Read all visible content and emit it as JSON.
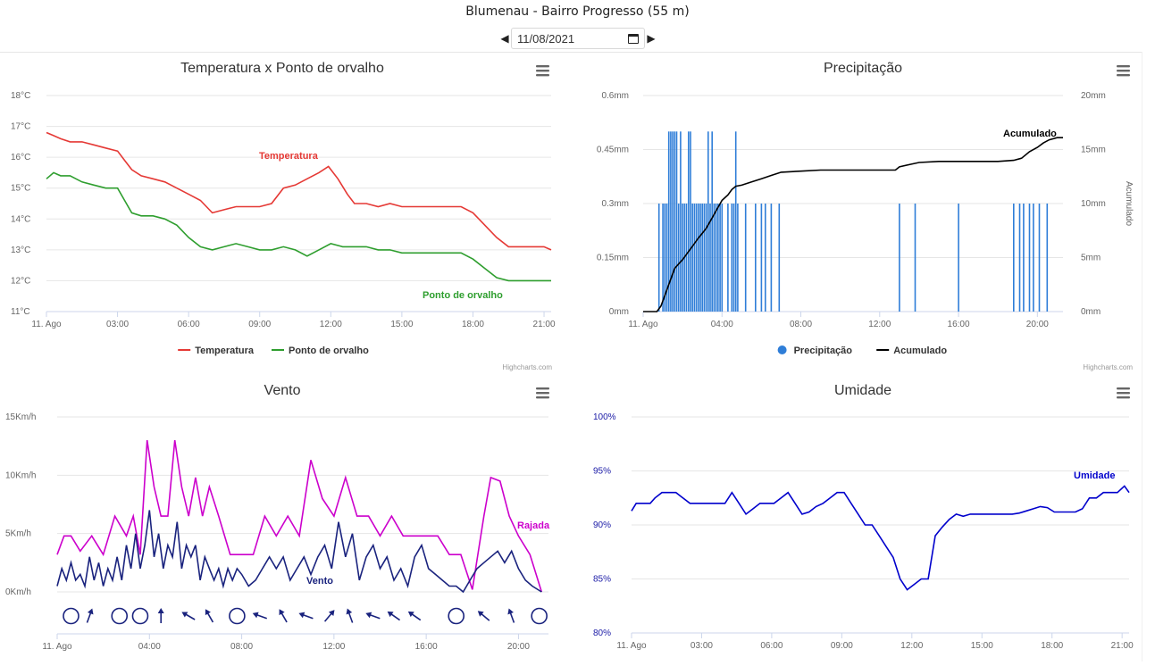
{
  "page": {
    "title": "Blumenau - Bairro Progresso (55 m)",
    "date_value": "11/08/2021",
    "credit": "Highcharts.com"
  },
  "chart_data": [
    {
      "id": "temp",
      "type": "line",
      "title": "Temperatura x Ponto de orvalho",
      "y_ticks": [
        "11°C",
        "12°C",
        "13°C",
        "14°C",
        "15°C",
        "16°C",
        "17°C",
        "18°C"
      ],
      "ylim": [
        11,
        18
      ],
      "x_ticks": [
        "11. Ago",
        "03:00",
        "06:00",
        "09:00",
        "12:00",
        "15:00",
        "18:00",
        "21:00"
      ],
      "x_tick_hours": [
        0,
        3,
        6,
        9,
        12,
        15,
        18,
        21
      ],
      "xlim_hours": [
        0,
        21.3
      ],
      "legend": "bottom",
      "series": [
        {
          "name": "Temperatura",
          "color": "#e53935",
          "x": [
            0,
            0.3,
            0.6,
            1,
            1.5,
            2,
            2.5,
            3,
            3.3,
            3.6,
            4,
            4.5,
            5,
            5.5,
            6,
            6.5,
            7,
            7.5,
            8,
            8.5,
            9,
            9.5,
            10,
            10.5,
            11,
            11.5,
            11.9,
            12.3,
            12.7,
            13,
            13.5,
            14,
            14.5,
            15,
            15.5,
            16,
            16.5,
            17,
            17.5,
            18,
            18.5,
            19,
            19.5,
            20,
            20.5,
            21,
            21.3
          ],
          "values": [
            16.8,
            16.7,
            16.6,
            16.5,
            16.5,
            16.4,
            16.3,
            16.2,
            15.9,
            15.6,
            15.4,
            15.3,
            15.2,
            15.0,
            14.8,
            14.6,
            14.2,
            14.3,
            14.4,
            14.4,
            14.4,
            14.5,
            15.0,
            15.1,
            15.3,
            15.5,
            15.7,
            15.3,
            14.8,
            14.5,
            14.5,
            14.4,
            14.5,
            14.4,
            14.4,
            14.4,
            14.4,
            14.4,
            14.4,
            14.2,
            13.8,
            13.4,
            13.1,
            13.1,
            13.1,
            13.1,
            13.0
          ]
        },
        {
          "name": "Ponto de orvalho",
          "color": "#2e9e2e",
          "x": [
            0,
            0.3,
            0.6,
            1,
            1.5,
            2,
            2.5,
            3,
            3.3,
            3.6,
            4,
            4.5,
            5,
            5.5,
            6,
            6.5,
            7,
            7.5,
            8,
            8.5,
            9,
            9.5,
            10,
            10.5,
            11,
            11.5,
            12,
            12.5,
            13,
            13.5,
            14,
            14.5,
            15,
            15.5,
            16,
            16.5,
            17,
            17.5,
            18,
            18.5,
            19,
            19.5,
            20,
            20.5,
            21,
            21.3
          ],
          "values": [
            15.3,
            15.5,
            15.4,
            15.4,
            15.2,
            15.1,
            15.0,
            15.0,
            14.6,
            14.2,
            14.1,
            14.1,
            14.0,
            13.8,
            13.4,
            13.1,
            13.0,
            13.1,
            13.2,
            13.1,
            13.0,
            13.0,
            13.1,
            13.0,
            12.8,
            13.0,
            13.2,
            13.1,
            13.1,
            13.1,
            13.0,
            13.0,
            12.9,
            12.9,
            12.9,
            12.9,
            12.9,
            12.9,
            12.7,
            12.4,
            12.1,
            12.0,
            12.0,
            12.0,
            12.0,
            12.0
          ]
        }
      ],
      "annotations": [
        {
          "text": "Temperatura",
          "color": "#e53935"
        },
        {
          "text": "Ponto de orvalho",
          "color": "#2e9e2e"
        }
      ]
    },
    {
      "id": "precip",
      "type": "bar+line",
      "title": "Precipitação",
      "y_ticks_left": [
        "0mm",
        "0.15mm",
        "0.3mm",
        "0.45mm",
        "0.6mm"
      ],
      "ylim_left": [
        0,
        0.6
      ],
      "y_ticks_right": [
        "0mm",
        "5mm",
        "10mm",
        "15mm",
        "20mm"
      ],
      "ylim_right": [
        0,
        20
      ],
      "ylabel_right": "Acumulado",
      "x_ticks": [
        "11. Ago",
        "04:00",
        "08:00",
        "12:00",
        "16:00",
        "20:00"
      ],
      "x_tick_hours": [
        0,
        4,
        8,
        12,
        16,
        20
      ],
      "xlim_hours": [
        0,
        21.3
      ],
      "legend": "bottom",
      "series": [
        {
          "name": "Precipitação",
          "color": "#2f7ed8",
          "x": [
            0.8,
            1.0,
            1.1,
            1.2,
            1.3,
            1.4,
            1.5,
            1.6,
            1.7,
            1.8,
            1.9,
            2.0,
            2.1,
            2.2,
            2.3,
            2.4,
            2.5,
            2.6,
            2.7,
            2.8,
            2.9,
            3.0,
            3.1,
            3.2,
            3.3,
            3.4,
            3.5,
            3.6,
            3.7,
            3.8,
            3.9,
            4.0,
            4.3,
            4.5,
            4.6,
            4.7,
            4.8,
            5.2,
            5.7,
            6.0,
            6.2,
            6.5,
            6.9,
            13.0,
            13.8,
            16.0,
            18.8,
            19.1,
            19.3,
            19.6,
            19.8,
            20.1,
            20.5
          ],
          "values": [
            0.3,
            0.3,
            0.3,
            0.3,
            0.5,
            0.5,
            0.5,
            0.5,
            0.5,
            0.3,
            0.5,
            0.3,
            0.3,
            0.3,
            0.5,
            0.5,
            0.3,
            0.3,
            0.3,
            0.3,
            0.3,
            0.3,
            0.3,
            0.3,
            0.5,
            0.3,
            0.5,
            0.3,
            0.3,
            0.3,
            0.3,
            0.3,
            0.3,
            0.3,
            0.3,
            0.5,
            0.3,
            0.3,
            0.3,
            0.3,
            0.3,
            0.3,
            0.3,
            0.3,
            0.3,
            0.3,
            0.3,
            0.3,
            0.3,
            0.3,
            0.3,
            0.3,
            0.3
          ]
        },
        {
          "name": "Acumulado",
          "color": "#000000",
          "x": [
            0,
            0.7,
            0.9,
            1.3,
            1.6,
            2.0,
            2.4,
            2.8,
            3.2,
            3.6,
            4.0,
            4.3,
            4.5,
            4.7,
            5.0,
            5.5,
            6.0,
            6.5,
            7.0,
            8.0,
            9.0,
            10.0,
            11.0,
            12.0,
            12.8,
            13.0,
            13.5,
            14.0,
            15.0,
            16.0,
            17.0,
            18.0,
            18.8,
            19.2,
            19.6,
            20.0,
            20.3,
            20.6,
            21.0,
            21.3
          ],
          "values": [
            0,
            0,
            0.5,
            2.5,
            4,
            4.8,
            5.8,
            6.8,
            7.7,
            9,
            10.3,
            10.8,
            11.3,
            11.6,
            11.7,
            12,
            12.3,
            12.6,
            12.9,
            13,
            13.1,
            13.1,
            13.1,
            13.1,
            13.1,
            13.4,
            13.6,
            13.8,
            13.9,
            13.9,
            13.9,
            13.9,
            14.0,
            14.2,
            14.8,
            15.2,
            15.6,
            15.9,
            16.1,
            16.1
          ]
        }
      ],
      "annotations": [
        {
          "text": "Acumulado",
          "color": "#000000"
        }
      ]
    },
    {
      "id": "wind",
      "type": "line",
      "title": "Vento",
      "y_ticks": [
        "0Km/h",
        "5Km/h",
        "10Km/h",
        "15Km/h"
      ],
      "ylim": [
        0,
        15
      ],
      "x_ticks": [
        "11. Ago",
        "04:00",
        "08:00",
        "12:00",
        "16:00",
        "20:00"
      ],
      "x_tick_hours": [
        0,
        4,
        8,
        12,
        16,
        20
      ],
      "xlim_hours": [
        0,
        21.3
      ],
      "legend": "none",
      "series": [
        {
          "name": "Rajada",
          "color": "#cc00cc",
          "x": [
            0,
            0.3,
            0.6,
            1,
            1.5,
            2,
            2.5,
            3,
            3.3,
            3.6,
            3.9,
            4.2,
            4.5,
            4.8,
            5.1,
            5.4,
            5.7,
            6,
            6.3,
            6.6,
            7,
            7.5,
            8,
            8.5,
            9,
            9.5,
            10,
            10.5,
            11,
            11.5,
            12,
            12.5,
            13,
            13.5,
            14,
            14.5,
            15,
            15.5,
            16,
            16.5,
            17,
            17.5,
            18,
            18.5,
            18.8,
            19.2,
            19.6,
            20,
            20.5,
            21
          ],
          "values": [
            3.2,
            4.8,
            4.8,
            3.5,
            4.8,
            3.2,
            6.5,
            4.8,
            6.5,
            3.2,
            13,
            9,
            6.5,
            6.5,
            13,
            9,
            6.5,
            9.8,
            6.5,
            9,
            6.5,
            3.2,
            3.2,
            3.2,
            6.5,
            4.8,
            6.5,
            4.8,
            11.3,
            8,
            6.5,
            9.8,
            6.5,
            6.5,
            4.8,
            6.5,
            4.8,
            4.8,
            4.8,
            4.8,
            3.2,
            3.2,
            0.2,
            6.5,
            9.8,
            9.5,
            6.5,
            4.8,
            3.2,
            0
          ]
        },
        {
          "name": "Vento",
          "color": "#1a237e",
          "x": [
            0,
            0.2,
            0.4,
            0.6,
            0.8,
            1,
            1.2,
            1.4,
            1.6,
            1.8,
            2,
            2.2,
            2.4,
            2.6,
            2.8,
            3,
            3.2,
            3.4,
            3.6,
            3.8,
            4,
            4.2,
            4.4,
            4.6,
            4.8,
            5,
            5.2,
            5.4,
            5.6,
            5.8,
            6,
            6.2,
            6.4,
            6.6,
            6.8,
            7,
            7.2,
            7.4,
            7.6,
            7.8,
            8,
            8.3,
            8.6,
            8.9,
            9.2,
            9.5,
            9.8,
            10.1,
            10.4,
            10.7,
            11,
            11.3,
            11.6,
            11.9,
            12.2,
            12.5,
            12.8,
            13.1,
            13.4,
            13.7,
            14,
            14.3,
            14.6,
            14.9,
            15.2,
            15.5,
            15.8,
            16.1,
            16.4,
            16.7,
            17,
            17.3,
            17.6,
            17.9,
            18.2,
            18.5,
            18.8,
            19.1,
            19.4,
            19.7,
            20,
            20.3,
            20.6,
            21
          ],
          "values": [
            0.5,
            2,
            1,
            2.5,
            1,
            1.5,
            0.5,
            3,
            1,
            2.5,
            0.5,
            2,
            1,
            3,
            1,
            4,
            2,
            5,
            2,
            4,
            7,
            3,
            5,
            2,
            4,
            3,
            6,
            2,
            4,
            3,
            4,
            1,
            3,
            2,
            1,
            2,
            0.5,
            2,
            1,
            2,
            1.5,
            0.5,
            1,
            2,
            3,
            2,
            3,
            1,
            2,
            3,
            1.5,
            3,
            4,
            2,
            6,
            3,
            5,
            1,
            3,
            4,
            2,
            3,
            1,
            2,
            0.5,
            3,
            4,
            2,
            1.5,
            1,
            0.5,
            0.5,
            0,
            1,
            2,
            2.5,
            3,
            3.5,
            2.5,
            3.5,
            2,
            1,
            0.5,
            0
          ]
        }
      ],
      "annotations": [
        {
          "text": "Rajada",
          "color": "#cc00cc"
        },
        {
          "text": "Vento",
          "color": "#1a237e"
        }
      ],
      "wind_direction": [
        {
          "h": 0.6,
          "symbol": "calm"
        },
        {
          "h": 1.4,
          "symbol": "arrow",
          "angle": 200
        },
        {
          "h": 2.7,
          "symbol": "calm"
        },
        {
          "h": 3.6,
          "symbol": "calm"
        },
        {
          "h": 4.5,
          "symbol": "arrow",
          "angle": 180
        },
        {
          "h": 5.7,
          "symbol": "arrow",
          "angle": 120
        },
        {
          "h": 6.6,
          "symbol": "arrow",
          "angle": 150
        },
        {
          "h": 7.8,
          "symbol": "calm"
        },
        {
          "h": 8.8,
          "symbol": "arrow",
          "angle": 110
        },
        {
          "h": 9.8,
          "symbol": "arrow",
          "angle": 150
        },
        {
          "h": 10.8,
          "symbol": "arrow",
          "angle": 110
        },
        {
          "h": 11.8,
          "symbol": "arrow",
          "angle": 220
        },
        {
          "h": 12.7,
          "symbol": "arrow",
          "angle": 160
        },
        {
          "h": 13.7,
          "symbol": "arrow",
          "angle": 110
        },
        {
          "h": 14.6,
          "symbol": "arrow",
          "angle": 125
        },
        {
          "h": 15.5,
          "symbol": "arrow",
          "angle": 125
        },
        {
          "h": 17.3,
          "symbol": "calm"
        },
        {
          "h": 18.5,
          "symbol": "arrow",
          "angle": 130
        },
        {
          "h": 19.7,
          "symbol": "arrow",
          "angle": 160
        },
        {
          "h": 20.9,
          "symbol": "calm"
        }
      ]
    },
    {
      "id": "umid",
      "type": "line",
      "title": "Umidade",
      "y_ticks": [
        "80%",
        "85%",
        "90%",
        "95%",
        "100%"
      ],
      "ylim": [
        80,
        100
      ],
      "x_ticks": [
        "11. Ago",
        "03:00",
        "06:00",
        "09:00",
        "12:00",
        "15:00",
        "18:00",
        "21:00"
      ],
      "x_tick_hours": [
        0,
        3,
        6,
        9,
        12,
        15,
        18,
        21
      ],
      "xlim_hours": [
        0,
        21.3
      ],
      "legend": "none",
      "series": [
        {
          "name": "Umidade",
          "color": "#0000cc",
          "x": [
            0,
            0.2,
            0.5,
            0.8,
            1,
            1.3,
            1.6,
            1.9,
            2.2,
            2.5,
            2.8,
            3.1,
            3.4,
            3.7,
            4,
            4.3,
            4.6,
            4.9,
            5.2,
            5.5,
            5.8,
            6.1,
            6.4,
            6.7,
            7,
            7.3,
            7.6,
            7.9,
            8.2,
            8.5,
            8.8,
            9.1,
            9.4,
            9.7,
            10,
            10.3,
            10.6,
            10.9,
            11.2,
            11.5,
            11.8,
            12.1,
            12.4,
            12.7,
            13,
            13.3,
            13.6,
            13.9,
            14.2,
            14.5,
            14.8,
            15.1,
            15.4,
            15.7,
            16,
            16.3,
            16.6,
            16.9,
            17.2,
            17.5,
            17.8,
            18.1,
            18.4,
            18.7,
            19,
            19.3,
            19.6,
            19.9,
            20.2,
            20.5,
            20.8,
            21.1,
            21.3
          ],
          "values": [
            91.3,
            92,
            92,
            92,
            92.5,
            93,
            93,
            93,
            92.5,
            92,
            92,
            92,
            92,
            92,
            92,
            93,
            92,
            91,
            91.5,
            92,
            92,
            92,
            92.5,
            93,
            92,
            91,
            91.2,
            91.7,
            92,
            92.5,
            93,
            93,
            92,
            91,
            90,
            90,
            89,
            88,
            87,
            85,
            84,
            84.5,
            85,
            85,
            89,
            89.8,
            90.5,
            91,
            90.8,
            91,
            91,
            91,
            91,
            91,
            91,
            91,
            91.1,
            91.3,
            91.5,
            91.7,
            91.6,
            91.2,
            91.2,
            91.2,
            91.2,
            91.5,
            92.5,
            92.5,
            93,
            93,
            93,
            93.6,
            93
          ]
        }
      ],
      "annotations": [
        {
          "text": "Umidade",
          "color": "#0000cc"
        }
      ]
    }
  ]
}
